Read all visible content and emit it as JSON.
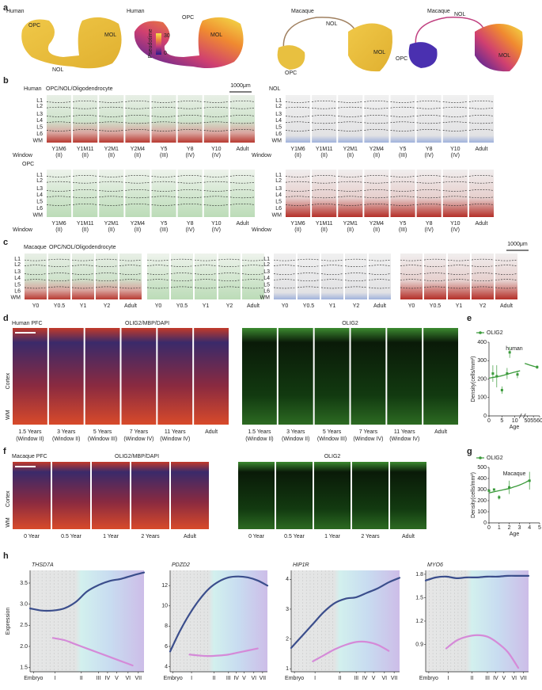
{
  "panel_letters": [
    "a",
    "b",
    "c",
    "d",
    "e",
    "f",
    "g",
    "h"
  ],
  "a": {
    "maps": [
      {
        "species": "Human",
        "labels": [
          "OPC",
          "MOL",
          "NOL"
        ]
      },
      {
        "species": "Human",
        "labels": [
          "OPC",
          "MOL"
        ]
      },
      {
        "species": "Macaque",
        "labels": [
          "NOL",
          "MOL",
          "OPC"
        ]
      },
      {
        "species": "Macaque",
        "labels": [
          "NOL",
          "MOL",
          "OPC"
        ]
      }
    ],
    "colorbar": {
      "title": "Pseudotime",
      "max": "30",
      "min": "0"
    }
  },
  "b": {
    "species": "Human",
    "legend": [
      {
        "text": "OPC",
        "color": "#3aa64a"
      },
      {
        "text": "/",
        "color": "#555555"
      },
      {
        "text": "NOL",
        "color": "#4a7fd0"
      },
      {
        "text": "/",
        "color": "#555555"
      },
      {
        "text": "Oligodendrocyte",
        "color": "#d03030"
      }
    ],
    "scale_bar": "1000μm",
    "subtitles": [
      "NOL",
      "OPC"
    ],
    "layers": [
      "L1",
      "L2",
      "L3",
      "L4",
      "L5",
      "L6",
      "WM"
    ],
    "window_label": "Window",
    "ages": [
      "Y1M6",
      "Y1M11",
      "Y2M1",
      "Y2M4",
      "Y5",
      "Y8",
      "Y10",
      "Adult"
    ],
    "windows": [
      "(II)",
      "(II)",
      "(II)",
      "(II)",
      "(III)",
      "(IV)",
      "(IV)",
      null
    ]
  },
  "c": {
    "species": "Macaque",
    "legend": [
      {
        "text": "OPC",
        "color": "#3aa64a"
      },
      {
        "text": "/",
        "color": "#555555"
      },
      {
        "text": "NOL",
        "color": "#4a7fd0"
      },
      {
        "text": "/",
        "color": "#555555"
      },
      {
        "text": "Oligodendrocyte",
        "color": "#d03030"
      }
    ],
    "scale_bar": "1000μm",
    "ages": [
      "Y0",
      "Y0.5",
      "Y1",
      "Y2",
      "Adult"
    ]
  },
  "d": {
    "title": "Human PFC",
    "merge_legend": [
      {
        "text": "OLIG2",
        "color": "#2fa02f"
      },
      {
        "text": "/MBP",
        "color": "#d02020"
      },
      {
        "text": "/DAPI",
        "color": "#3030c0"
      }
    ],
    "single_legend": {
      "text": "OLIG2",
      "color": "#2fa02f"
    },
    "regions": [
      "Cortex",
      "WM"
    ],
    "ages": [
      "1.5 Years",
      "3 Years",
      "5 Years",
      "7 Years",
      "11 Years",
      "Adult"
    ],
    "windows": [
      "(Window II)",
      "(Window II)",
      "(Window III)",
      "(Window IV)",
      "(Window IV)",
      null
    ]
  },
  "f": {
    "title": "Macaque PFC",
    "merge_legend": [
      {
        "text": "OLIG2",
        "color": "#2fa02f"
      },
      {
        "text": "/MBP",
        "color": "#d02020"
      },
      {
        "text": "/DAPI",
        "color": "#3030c0"
      }
    ],
    "single_legend": {
      "text": "OLIG2",
      "color": "#2fa02f"
    },
    "regions": [
      "Cortex",
      "WM"
    ],
    "ages": [
      "0 Year",
      "0.5 Year",
      "1 Year",
      "2 Years",
      "Adult"
    ]
  },
  "chart_data": [
    {
      "type": "scatter",
      "subtitle": "human",
      "xlabel": "Age",
      "ylabel": "Density(cells/mm²)",
      "legend": "upper left",
      "x": [
        1.5,
        3,
        5,
        7,
        8,
        11,
        58
      ],
      "series": [
        {
          "name": "OLIG2",
          "color": "#3a9a3a",
          "values": [
            230,
            215,
            140,
            230,
            345,
            225,
            265
          ],
          "errors": [
            45,
            60,
            20,
            30,
            30,
            20,
            10
          ]
        }
      ],
      "fit_x": [
        0,
        2,
        4,
        6,
        8,
        10,
        12,
        48,
        52,
        56,
        58
      ],
      "fit_values": [
        205,
        210,
        215,
        222,
        230,
        238,
        245,
        285,
        276,
        268,
        263
      ],
      "xlim": [
        0,
        60
      ],
      "x_break": [
        12,
        48
      ],
      "xticks": [
        0,
        5,
        10,
        50,
        55,
        60
      ],
      "ylim": [
        0,
        400
      ],
      "yticks": [
        0,
        100,
        200,
        300,
        400
      ]
    },
    {
      "type": "scatter",
      "subtitle": "Macaque",
      "xlabel": "Age",
      "ylabel": "Density(cells/mm²)",
      "legend": "upper left",
      "x": [
        0,
        0.5,
        1,
        2,
        4
      ],
      "series": [
        {
          "name": "OLIG2",
          "color": "#3a9a3a",
          "values": [
            290,
            300,
            230,
            320,
            380
          ],
          "errors": [
            10,
            10,
            20,
            60,
            80
          ]
        }
      ],
      "fit_x": [
        0,
        0.5,
        1,
        1.5,
        2,
        2.5,
        3,
        3.5,
        4
      ],
      "fit_values": [
        270,
        280,
        290,
        300,
        310,
        325,
        340,
        360,
        385
      ],
      "xlim": [
        0,
        5
      ],
      "xticks": [
        0,
        1,
        2,
        3,
        4,
        5
      ],
      "ylim": [
        0,
        500
      ],
      "yticks": [
        0,
        100,
        200,
        300,
        400,
        500
      ]
    },
    {
      "type": "line",
      "title": "THSD7A",
      "ylabel": "Expression",
      "x": [
        0,
        10,
        20,
        30,
        40,
        50,
        60,
        70,
        80,
        90,
        100
      ],
      "xlim": [
        0,
        100
      ],
      "xticks": [
        {
          "value": 3,
          "label": "Embryo"
        },
        {
          "value": 22,
          "label": "I"
        },
        {
          "value": 45,
          "label": "II"
        },
        {
          "value": 60,
          "label": "III"
        },
        {
          "value": 68,
          "label": "IV"
        },
        {
          "value": 76,
          "label": "V"
        },
        {
          "value": 86,
          "label": "VI"
        },
        {
          "value": 95,
          "label": "VII"
        }
      ],
      "ylim": [
        1.4,
        3.8
      ],
      "yticks": [
        1.5,
        {
          "value": 2,
          "label": "2.0"
        },
        2.5,
        {
          "value": 3,
          "label": "3.0"
        },
        3.5
      ],
      "series": [
        {
          "color": "#3b4e8c",
          "values": [
            2.9,
            2.85,
            2.85,
            2.9,
            3.05,
            3.3,
            3.45,
            3.55,
            3.6,
            3.68,
            3.75
          ]
        },
        {
          "color": "#d58ad8",
          "values": [
            null,
            null,
            2.2,
            2.15,
            2.05,
            1.95,
            1.85,
            1.75,
            1.65,
            1.55,
            null
          ]
        }
      ]
    },
    {
      "type": "line",
      "title": "PDZD2",
      "x": [
        0,
        10,
        20,
        30,
        40,
        50,
        60,
        70,
        80,
        90,
        100
      ],
      "xlim": [
        0,
        100
      ],
      "xticks": [
        {
          "value": 3,
          "label": "Embryo"
        },
        {
          "value": 22,
          "label": "I"
        },
        {
          "value": 45,
          "label": "II"
        },
        {
          "value": 60,
          "label": "III"
        },
        {
          "value": 68,
          "label": "IV"
        },
        {
          "value": 76,
          "label": "V"
        },
        {
          "value": 86,
          "label": "VI"
        },
        {
          "value": 95,
          "label": "VII"
        }
      ],
      "ylim": [
        3.5,
        13.5
      ],
      "yticks": [
        4,
        6,
        8,
        10,
        12
      ],
      "series": [
        {
          "color": "#3b4e8c",
          "values": [
            5.5,
            7.5,
            9.2,
            10.6,
            11.7,
            12.4,
            12.8,
            12.9,
            12.8,
            12.5,
            12.0
          ]
        },
        {
          "color": "#d58ad8",
          "values": [
            null,
            null,
            5.2,
            5.1,
            5.05,
            5.1,
            5.2,
            5.4,
            5.6,
            5.8,
            null
          ]
        }
      ]
    },
    {
      "type": "line",
      "title": "HIP1R",
      "x": [
        0,
        10,
        20,
        30,
        40,
        50,
        60,
        70,
        80,
        90,
        100
      ],
      "xlim": [
        0,
        100
      ],
      "xticks": [
        {
          "value": 3,
          "label": "Embryo"
        },
        {
          "value": 22,
          "label": "I"
        },
        {
          "value": 45,
          "label": "II"
        },
        {
          "value": 60,
          "label": "III"
        },
        {
          "value": 68,
          "label": "IV"
        },
        {
          "value": 76,
          "label": "V"
        },
        {
          "value": 86,
          "label": "VI"
        },
        {
          "value": 95,
          "label": "VII"
        }
      ],
      "ylim": [
        0.9,
        4.3
      ],
      "yticks": [
        1,
        2,
        3,
        4
      ],
      "series": [
        {
          "color": "#3b4e8c",
          "values": [
            1.7,
            2.1,
            2.5,
            2.9,
            3.2,
            3.35,
            3.4,
            3.55,
            3.7,
            3.9,
            4.05
          ]
        },
        {
          "color": "#d58ad8",
          "values": [
            null,
            null,
            1.25,
            1.45,
            1.65,
            1.8,
            1.9,
            1.9,
            1.8,
            1.6,
            null
          ]
        }
      ]
    },
    {
      "type": "line",
      "title": "MYO6",
      "x": [
        0,
        10,
        20,
        30,
        40,
        50,
        60,
        70,
        80,
        90,
        100
      ],
      "xlim": [
        0,
        100
      ],
      "xticks": [
        {
          "value": 3,
          "label": "Embryo"
        },
        {
          "value": 22,
          "label": "I"
        },
        {
          "value": 45,
          "label": "II"
        },
        {
          "value": 60,
          "label": "III"
        },
        {
          "value": 68,
          "label": "IV"
        },
        {
          "value": 76,
          "label": "V"
        },
        {
          "value": 86,
          "label": "VI"
        },
        {
          "value": 95,
          "label": "VII"
        }
      ],
      "ylim": [
        0.55,
        1.85
      ],
      "yticks": [
        0.9,
        1.2,
        1.5,
        1.8
      ],
      "series": [
        {
          "color": "#3b4e8c",
          "values": [
            1.72,
            1.76,
            1.77,
            1.75,
            1.76,
            1.76,
            1.77,
            1.77,
            1.78,
            1.78,
            1.78
          ]
        },
        {
          "color": "#d58ad8",
          "values": [
            null,
            null,
            0.85,
            0.95,
            1.0,
            1.02,
            1.0,
            0.92,
            0.8,
            0.6,
            null
          ]
        }
      ]
    }
  ]
}
